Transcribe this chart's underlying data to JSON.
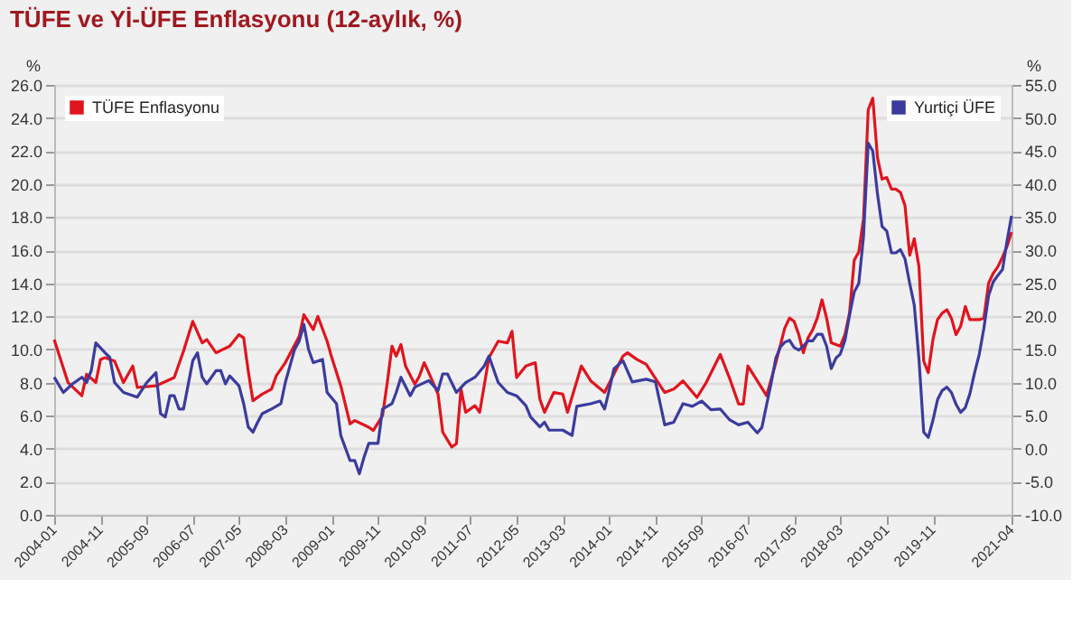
{
  "chart_data": {
    "type": "line",
    "title": "TÜFE ve Yİ-ÜFE Enflasyonu (12-aylık, %)",
    "ylabel": "%",
    "y2label": "%",
    "xlim": [
      "2004-01",
      "2021-04"
    ],
    "xticks": [
      "2004-01",
      "2004-11",
      "2005-09",
      "2006-07",
      "2007-05",
      "2008-03",
      "2009-01",
      "2009-11",
      "2010-09",
      "2011-07",
      "2012-05",
      "2013-03",
      "2014-01",
      "2014-11",
      "2015-09",
      "2016-07",
      "2017-05",
      "2018-03",
      "2019-01",
      "2019-11",
      "2021-04"
    ],
    "ylim": [
      0,
      26
    ],
    "yticks": [
      {
        "value": 0,
        "label": "0.0"
      },
      {
        "value": 2,
        "label": "2.0"
      },
      {
        "value": 4,
        "label": "4.0"
      },
      {
        "value": 6,
        "label": "6.0"
      },
      {
        "value": 8,
        "label": "8.0"
      },
      {
        "value": 10,
        "label": "10.0"
      },
      {
        "value": 12,
        "label": "12.0"
      },
      {
        "value": 14,
        "label": "14.0"
      },
      {
        "value": 16,
        "label": "16.0"
      },
      {
        "value": 18,
        "label": "18.0"
      },
      {
        "value": 20,
        "label": "20.0"
      },
      {
        "value": 22,
        "label": "22.0"
      },
      {
        "value": 24,
        "label": "24.0"
      },
      {
        "value": 26,
        "label": "26.0"
      }
    ],
    "y2lim": [
      -10,
      55
    ],
    "y2ticks": [
      {
        "value": -10,
        "label": "-10.0"
      },
      {
        "value": -5,
        "label": "-5.0"
      },
      {
        "value": 0,
        "label": "0.0"
      },
      {
        "value": 5,
        "label": "5.0"
      },
      {
        "value": 10,
        "label": "10.0"
      },
      {
        "value": 15,
        "label": "15.0"
      },
      {
        "value": 20,
        "label": "20.0"
      },
      {
        "value": 25,
        "label": "25.0"
      },
      {
        "value": 30,
        "label": "30.0"
      },
      {
        "value": 35,
        "label": "35.0"
      },
      {
        "value": 40,
        "label": "40.0"
      },
      {
        "value": 45,
        "label": "45.0"
      },
      {
        "value": 50,
        "label": "50.0"
      },
      {
        "value": 55,
        "label": "55.0"
      }
    ],
    "grid": "y",
    "legend": "top",
    "marker": "none",
    "line_style": "solid",
    "series": [
      {
        "name": "TÜFE Enflasyonu",
        "color": "#e0141e",
        "x": [
          "2004-01",
          "2004-04",
          "2004-07",
          "2004-08",
          "2004-10",
          "2004-11",
          "2004-12",
          "2005-02",
          "2005-04",
          "2005-06",
          "2005-07",
          "2005-11",
          "2006-03",
          "2006-05",
          "2006-07",
          "2006-09",
          "2006-10",
          "2006-12",
          "2007-03",
          "2007-05",
          "2007-06",
          "2007-07",
          "2007-08",
          "2007-10",
          "2007-12",
          "2008-01",
          "2008-03",
          "2008-06",
          "2008-07",
          "2008-09",
          "2008-10",
          "2008-12",
          "2009-01",
          "2009-03",
          "2009-05",
          "2009-06",
          "2009-09",
          "2009-10",
          "2009-12",
          "2010-01",
          "2010-02",
          "2010-03",
          "2010-04",
          "2010-05",
          "2010-07",
          "2010-08",
          "2010-09",
          "2010-10",
          "2010-12",
          "2011-01",
          "2011-03",
          "2011-04",
          "2011-05",
          "2011-06",
          "2011-08",
          "2011-09",
          "2011-11",
          "2012-01",
          "2012-03",
          "2012-04",
          "2012-05",
          "2012-07",
          "2012-09",
          "2012-10",
          "2012-11",
          "2013-01",
          "2013-03",
          "2013-04",
          "2013-07",
          "2013-09",
          "2013-12",
          "2014-04",
          "2014-05",
          "2014-07",
          "2014-09",
          "2015-01",
          "2015-03",
          "2015-05",
          "2015-08",
          "2015-10",
          "2016-01",
          "2016-03",
          "2016-05",
          "2016-06",
          "2016-07",
          "2016-09",
          "2016-11",
          "2017-01",
          "2017-03",
          "2017-04",
          "2017-05",
          "2017-06",
          "2017-07",
          "2017-08",
          "2017-09",
          "2017-10",
          "2017-11",
          "2017-12",
          "2018-01",
          "2018-02",
          "2018-03",
          "2018-04",
          "2018-05",
          "2018-06",
          "2018-07",
          "2018-08",
          "2018-09",
          "2018-10",
          "2018-11",
          "2018-12",
          "2019-01",
          "2019-02",
          "2019-03",
          "2019-04",
          "2019-05",
          "2019-06",
          "2019-07",
          "2019-08",
          "2019-09",
          "2019-10",
          "2019-11",
          "2019-12",
          "2020-01",
          "2020-02",
          "2020-03",
          "2020-04",
          "2020-05",
          "2020-06",
          "2020-07",
          "2020-08",
          "2020-09",
          "2020-10",
          "2020-11",
          "2020-12",
          "2021-01",
          "2021-02",
          "2021-03",
          "2021-04"
        ],
        "values": [
          10.6,
          8.0,
          7.2,
          8.5,
          8.0,
          9.4,
          9.5,
          9.3,
          8.0,
          9.0,
          7.7,
          7.8,
          8.3,
          9.9,
          11.7,
          10.4,
          10.6,
          9.8,
          10.2,
          10.9,
          10.7,
          8.7,
          6.9,
          7.3,
          7.6,
          8.4,
          9.2,
          10.8,
          12.1,
          11.2,
          12.0,
          10.5,
          9.5,
          7.8,
          5.5,
          5.7,
          5.3,
          5.1,
          6.0,
          8.0,
          10.2,
          9.6,
          10.3,
          9.0,
          7.9,
          8.4,
          9.2,
          8.6,
          7.3,
          5.0,
          4.1,
          4.3,
          7.6,
          6.2,
          6.6,
          6.2,
          9.5,
          10.5,
          10.4,
          11.1,
          8.3,
          9.0,
          9.2,
          7.0,
          6.2,
          7.4,
          7.3,
          6.2,
          9.0,
          8.1,
          7.4,
          9.6,
          9.8,
          9.4,
          9.1,
          7.4,
          7.6,
          8.1,
          7.1,
          8.0,
          9.7,
          8.3,
          6.7,
          6.7,
          9.0,
          8.1,
          7.2,
          9.2,
          11.3,
          11.9,
          11.7,
          10.9,
          9.8,
          10.7,
          11.2,
          11.9,
          13.0,
          11.9,
          10.4,
          10.3,
          10.2,
          10.9,
          12.2,
          15.4,
          15.9,
          17.9,
          24.5,
          25.2,
          21.6,
          20.3,
          20.4,
          19.7,
          19.7,
          19.5,
          18.7,
          15.7,
          16.7,
          15.0,
          9.3,
          8.6,
          10.6,
          11.8,
          12.2,
          12.4,
          11.9,
          10.9,
          11.4,
          12.6,
          11.8,
          11.8,
          11.8,
          11.9,
          14.0,
          14.6,
          15.0,
          15.6,
          16.2,
          17.1
        ]
      },
      {
        "name": "Yurtiçi ÜFE",
        "color": "#3b3b9e",
        "axis": "y2",
        "x": [
          "2004-01",
          "2004-03",
          "2004-05",
          "2004-07",
          "2004-08",
          "2004-09",
          "2004-10",
          "2004-12",
          "2005-01",
          "2005-02",
          "2005-04",
          "2005-07",
          "2005-09",
          "2005-11",
          "2005-12",
          "2006-01",
          "2006-02",
          "2006-03",
          "2006-04",
          "2006-05",
          "2006-07",
          "2006-08",
          "2006-09",
          "2006-10",
          "2006-12",
          "2007-01",
          "2007-02",
          "2007-03",
          "2007-05",
          "2007-06",
          "2007-07",
          "2007-08",
          "2007-09",
          "2007-10",
          "2007-12",
          "2008-02",
          "2008-03",
          "2008-05",
          "2008-06",
          "2008-07",
          "2008-08",
          "2008-09",
          "2008-11",
          "2008-12",
          "2009-02",
          "2009-03",
          "2009-05",
          "2009-06",
          "2009-07",
          "2009-08",
          "2009-09",
          "2009-11",
          "2009-12",
          "2010-02",
          "2010-03",
          "2010-04",
          "2010-06",
          "2010-07",
          "2010-10",
          "2010-12",
          "2011-01",
          "2011-02",
          "2011-04",
          "2011-06",
          "2011-08",
          "2011-10",
          "2011-11",
          "2012-01",
          "2012-03",
          "2012-05",
          "2012-07",
          "2012-08",
          "2012-10",
          "2012-11",
          "2012-12",
          "2013-03",
          "2013-05",
          "2013-06",
          "2013-09",
          "2013-11",
          "2013-12",
          "2014-01",
          "2014-02",
          "2014-04",
          "2014-06",
          "2014-09",
          "2014-11",
          "2015-01",
          "2015-03",
          "2015-05",
          "2015-07",
          "2015-09",
          "2015-11",
          "2016-01",
          "2016-03",
          "2016-05",
          "2016-07",
          "2016-09",
          "2016-10",
          "2016-12",
          "2017-01",
          "2017-02",
          "2017-03",
          "2017-04",
          "2017-05",
          "2017-06",
          "2017-07",
          "2017-08",
          "2017-09",
          "2017-10",
          "2017-11",
          "2017-12",
          "2018-01",
          "2018-02",
          "2018-03",
          "2018-04",
          "2018-05",
          "2018-06",
          "2018-07",
          "2018-08",
          "2018-09",
          "2018-10",
          "2018-11",
          "2018-12",
          "2019-01",
          "2019-02",
          "2019-03",
          "2019-04",
          "2019-05",
          "2019-06",
          "2019-07",
          "2019-08",
          "2019-09",
          "2019-10",
          "2019-11",
          "2019-12",
          "2020-01",
          "2020-02",
          "2020-03",
          "2020-04",
          "2020-05",
          "2020-06",
          "2020-07",
          "2020-08",
          "2020-09",
          "2020-10",
          "2020-11",
          "2020-12",
          "2021-01",
          "2021-02",
          "2021-03",
          "2021-04"
        ],
        "values": [
          10.8,
          8.5,
          9.8,
          10.8,
          10.0,
          11.8,
          16.0,
          14.5,
          13.8,
          10.0,
          8.5,
          7.8,
          10.0,
          11.5,
          5.3,
          4.8,
          8.0,
          8.0,
          6.0,
          6.0,
          13.3,
          14.5,
          10.8,
          9.8,
          11.8,
          11.8,
          9.8,
          11.0,
          9.5,
          6.8,
          3.3,
          2.5,
          4.0,
          5.3,
          6.0,
          6.8,
          10.0,
          15.0,
          16.3,
          18.8,
          15.0,
          13.0,
          13.5,
          8.5,
          6.8,
          2.0,
          -1.8,
          -1.8,
          -3.8,
          -1.3,
          0.8,
          0.8,
          6.0,
          6.8,
          8.5,
          10.8,
          8.0,
          9.3,
          10.3,
          8.8,
          11.3,
          11.3,
          8.5,
          10.0,
          10.8,
          12.5,
          14.0,
          10.0,
          8.5,
          8.0,
          6.5,
          4.8,
          3.3,
          4.0,
          2.8,
          2.8,
          2.0,
          6.4,
          6.8,
          7.2,
          6.0,
          8.9,
          12.1,
          13.3,
          10.1,
          10.5,
          10.1,
          3.6,
          4.0,
          6.8,
          6.4,
          7.2,
          5.9,
          6.0,
          4.4,
          3.6,
          4.0,
          2.4,
          3.2,
          9.9,
          13.7,
          15.4,
          16.1,
          16.4,
          15.3,
          14.9,
          15.5,
          16.3,
          16.3,
          17.3,
          17.3,
          15.5,
          12.1,
          13.7,
          14.3,
          16.4,
          20.2,
          23.7,
          25.0,
          32.1,
          46.2,
          45.0,
          38.5,
          33.6,
          32.9,
          29.6,
          29.6,
          30.1,
          28.7,
          25.0,
          21.7,
          13.5,
          2.5,
          1.7,
          4.3,
          7.4,
          8.8,
          9.3,
          8.5,
          6.7,
          5.5,
          6.2,
          8.3,
          11.5,
          14.3,
          18.2,
          23.1,
          25.2,
          26.2,
          27.1,
          31.2,
          35.2
        ]
      }
    ]
  }
}
